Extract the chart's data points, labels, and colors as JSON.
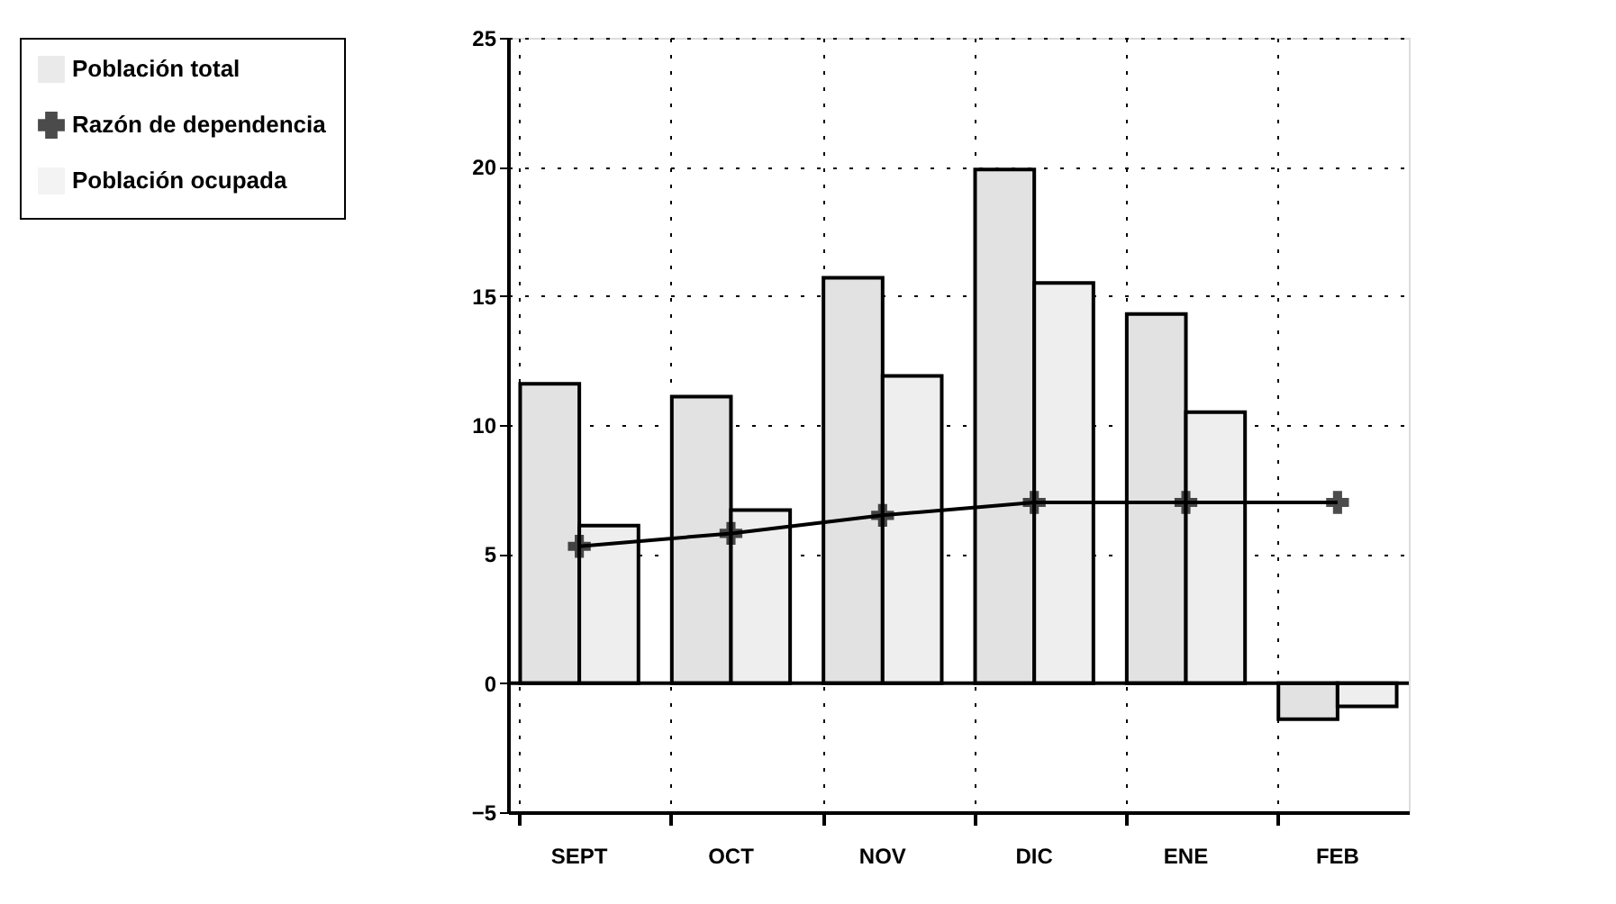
{
  "chart_data": {
    "type": "bar",
    "categories": [
      "SEPT",
      "OCT",
      "NOV",
      "DIC",
      "ENE",
      "FEB"
    ],
    "series": [
      {
        "name": "Población total",
        "color": "#e2e2e2",
        "values": [
          11.6,
          11.1,
          15.7,
          19.9,
          14.3,
          -1.4
        ]
      },
      {
        "name": "Razón de dependencia",
        "type": "line",
        "color": "#000000",
        "marker": "cross",
        "values": [
          5.3,
          5.8,
          6.5,
          7.0,
          7.0,
          7.0
        ]
      },
      {
        "name": "Población ocupada",
        "color": "#eeeeee",
        "values": [
          6.1,
          6.7,
          11.9,
          15.5,
          10.5,
          -0.9
        ]
      }
    ],
    "ylim": [
      -5,
      25
    ],
    "yticks": [
      -5,
      0,
      5,
      10,
      15,
      20,
      25
    ],
    "ref_lines": [
      {
        "axis": "y",
        "value": 0
      }
    ],
    "grid": true,
    "legend": "left"
  }
}
